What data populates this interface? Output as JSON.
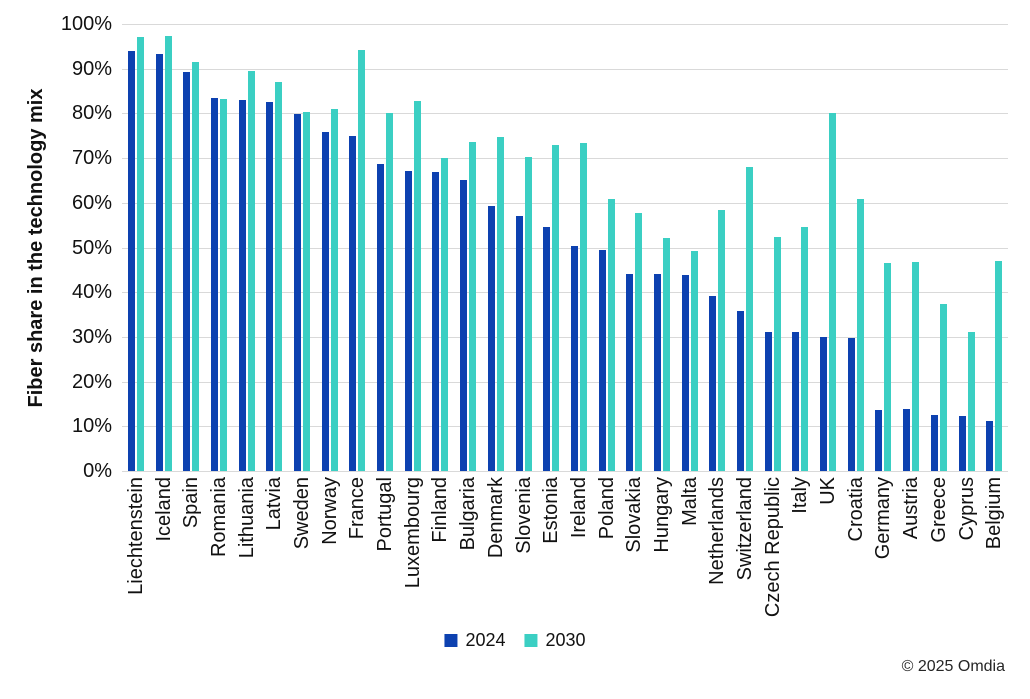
{
  "chart_data": {
    "type": "bar",
    "title": "",
    "xlabel": "",
    "ylabel": "Fiber share in the technology mix",
    "ylim": [
      0,
      100
    ],
    "ytick_step": 10,
    "ytick_labels": [
      "0%",
      "10%",
      "20%",
      "30%",
      "40%",
      "50%",
      "60%",
      "70%",
      "80%",
      "90%",
      "100%"
    ],
    "grid": true,
    "legend_position": "bottom-center",
    "categories": [
      "Liechtenstein",
      "Iceland",
      "Spain",
      "Romania",
      "Lithuania",
      "Latvia",
      "Sweden",
      "Norway",
      "France",
      "Portugal",
      "Luxembourg",
      "Finland",
      "Bulgaria",
      "Denmark",
      "Slovenia",
      "Estonia",
      "Ireland",
      "Poland",
      "Slovakia",
      "Hungary",
      "Malta",
      "Netherlands",
      "Switzerland",
      "Czech Republic",
      "Italy",
      "UK",
      "Croatia",
      "Germany",
      "Austria",
      "Greece",
      "Cyprus",
      "Belgium"
    ],
    "series": [
      {
        "name": "2024",
        "color": "#0d41b0",
        "values": [
          94.0,
          93.3,
          89.2,
          83.5,
          83.1,
          82.6,
          79.8,
          75.8,
          74.9,
          68.6,
          67.1,
          67.0,
          65.1,
          59.3,
          57.0,
          54.6,
          50.4,
          49.4,
          44.1,
          44.1,
          43.8,
          39.1,
          35.9,
          31.0,
          31.2,
          29.9,
          29.7,
          13.6,
          13.8,
          12.5,
          12.3,
          11.3
        ]
      },
      {
        "name": "2030",
        "color": "#3bcfc3",
        "values": [
          97.2,
          97.4,
          91.6,
          83.3,
          89.4,
          87.0,
          80.3,
          81.1,
          94.3,
          80.0,
          82.8,
          70.0,
          73.7,
          74.8,
          70.3,
          72.9,
          73.4,
          60.8,
          57.8,
          52.1,
          49.2,
          58.5,
          68.1,
          52.3,
          54.5,
          80.2,
          60.9,
          46.5,
          46.8,
          37.4,
          31.1,
          47.1
        ]
      }
    ]
  },
  "colors": {
    "gridline": "#d9d9d9",
    "axis_text": "#111111",
    "series_2024": "#0d41b0",
    "series_2030": "#3bcfc3"
  },
  "footer": {
    "copyright": "© 2025 Omdia"
  }
}
